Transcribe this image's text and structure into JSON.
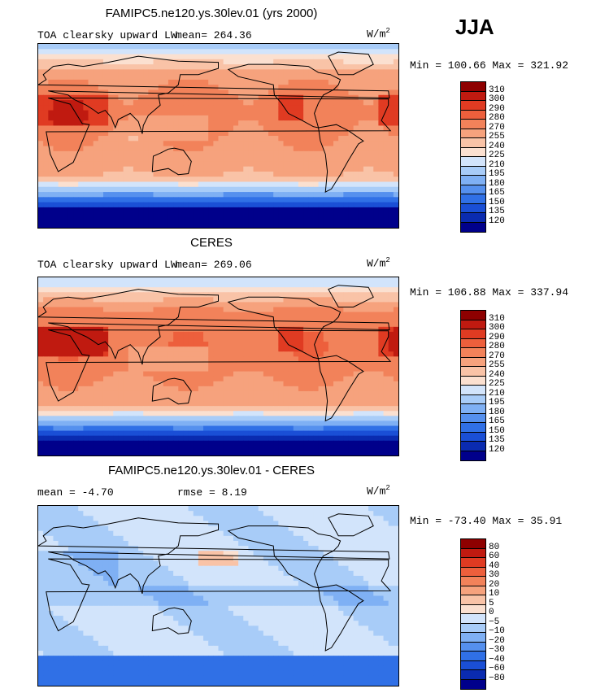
{
  "season": "JJA",
  "panels": [
    {
      "title": "FAMIPC5.ne120.ys.30lev.01 (yrs 2000)",
      "variable": "TOA clearsky upward LW",
      "stat_text": "mean= 264.36",
      "units": "W/m",
      "units_exp": "2",
      "minmax": "Min = 100.66 Max = 321.92"
    },
    {
      "title": "CERES",
      "variable": "TOA clearsky upward LW",
      "stat_text": "mean= 269.06",
      "units": "W/m",
      "units_exp": "2",
      "minmax": "Min = 106.88 Max = 337.94"
    },
    {
      "title": "FAMIPC5.ne120.ys.30lev.01 - CERES",
      "variable": "",
      "stat_text": "mean =  -4.70",
      "rmse_text": "rmse =   8.19",
      "units": "W/m",
      "units_exp": "2",
      "minmax": "Min = -73.40 Max =  35.91"
    }
  ],
  "chart_data": [
    {
      "type": "heatmap",
      "title": "FAMIPC5.ne120.ys.30lev.01 (yrs 2000)",
      "field": "TOA clearsky upward LW",
      "units": "W/m^2",
      "mean": 264.36,
      "min": 100.66,
      "max": 321.92,
      "levels": [
        120,
        135,
        150,
        165,
        180,
        195,
        210,
        225,
        240,
        255,
        270,
        280,
        290,
        300,
        310
      ],
      "colors": [
        "#00008b",
        "#0a2bb0",
        "#1a4fd6",
        "#3070e6",
        "#5590ee",
        "#7fb0f4",
        "#a8ccf8",
        "#d2e4fb",
        "#fbe0d0",
        "#f9c3a7",
        "#f6a27d",
        "#f2825a",
        "#ed5f3c",
        "#e03b22",
        "#c01a10",
        "#8e0000"
      ]
    },
    {
      "type": "heatmap",
      "title": "CERES",
      "field": "TOA clearsky upward LW",
      "units": "W/m^2",
      "mean": 269.06,
      "min": 106.88,
      "max": 337.94,
      "levels": [
        120,
        135,
        150,
        165,
        180,
        195,
        210,
        225,
        240,
        255,
        270,
        280,
        290,
        300,
        310
      ],
      "colors": [
        "#00008b",
        "#0a2bb0",
        "#1a4fd6",
        "#3070e6",
        "#5590ee",
        "#7fb0f4",
        "#a8ccf8",
        "#d2e4fb",
        "#fbe0d0",
        "#f9c3a7",
        "#f6a27d",
        "#f2825a",
        "#ed5f3c",
        "#e03b22",
        "#c01a10",
        "#8e0000"
      ]
    },
    {
      "type": "heatmap",
      "title": "FAMIPC5.ne120.ys.30lev.01 - CERES",
      "units": "W/m^2",
      "mean": -4.7,
      "rmse": 8.19,
      "min": -73.4,
      "max": 35.91,
      "levels": [
        -80,
        -60,
        -40,
        -30,
        -20,
        -10,
        -5,
        0,
        5,
        10,
        20,
        30,
        40,
        60,
        80
      ],
      "colors": [
        "#00008b",
        "#0a2bb0",
        "#1a4fd6",
        "#3070e6",
        "#5590ee",
        "#7fb0f4",
        "#a8ccf8",
        "#d2e4fb",
        "#fbe0d0",
        "#f9c3a7",
        "#f6a27d",
        "#f2825a",
        "#ed5f3c",
        "#e03b22",
        "#c01a10",
        "#8e0000"
      ]
    }
  ]
}
